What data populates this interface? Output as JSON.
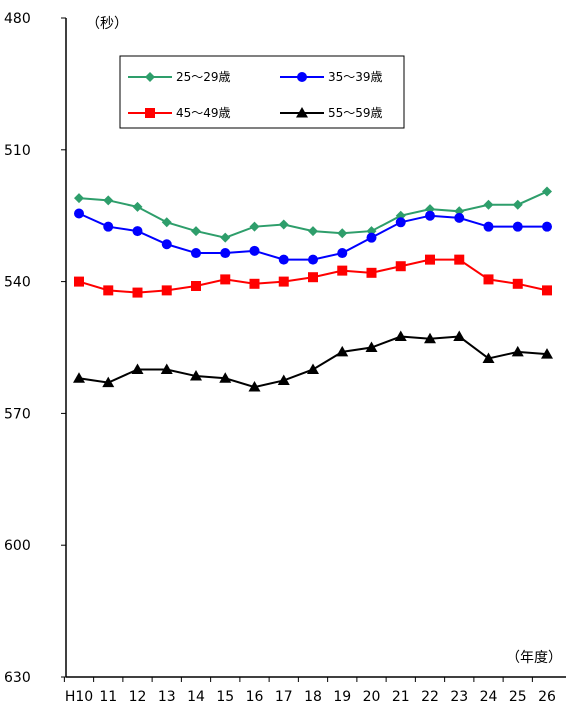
{
  "chart_data": {
    "type": "line",
    "title": "",
    "ylabel": "（秒）",
    "xlabel": "（年度）",
    "y_axis": {
      "min": 480,
      "max": 630,
      "inverted": true,
      "ticks": [
        "480",
        "510",
        "540",
        "570",
        "600",
        "630"
      ]
    },
    "categories": [
      "H10",
      "11",
      "12",
      "13",
      "14",
      "15",
      "16",
      "17",
      "18",
      "19",
      "20",
      "21",
      "22",
      "23",
      "24",
      "25",
      "26"
    ],
    "series": [
      {
        "name": "25〜29歳",
        "color": "#2e9e6b",
        "marker": "diamond",
        "values": [
          521,
          521.5,
          523,
          526.5,
          528.5,
          530,
          527.5,
          527,
          528.5,
          529,
          528.5,
          525,
          523.5,
          524,
          522.5,
          522.5,
          519.5
        ]
      },
      {
        "name": "35〜39歳",
        "color": "#0000ff",
        "marker": "circle",
        "values": [
          524.5,
          527.5,
          528.5,
          531.5,
          533.5,
          533.5,
          533,
          535,
          535,
          533.5,
          530,
          526.5,
          525,
          525.5,
          527.5,
          527.5,
          527.5
        ]
      },
      {
        "name": "45〜49歳",
        "color": "#ff0000",
        "marker": "square",
        "values": [
          540,
          542,
          542.5,
          542,
          541,
          539.5,
          540.5,
          540,
          539,
          537.5,
          538,
          536.5,
          535,
          535,
          539.5,
          540.5,
          542
        ]
      },
      {
        "name": "55〜59歳",
        "color": "#000000",
        "marker": "triangle",
        "values": [
          562,
          563,
          560,
          560,
          561.5,
          562,
          564,
          562.5,
          560,
          556,
          555,
          552.5,
          553,
          552.5,
          557.5,
          556,
          556.5
        ]
      }
    ],
    "legend": {
      "placement": "top-left"
    },
    "grid": false
  }
}
